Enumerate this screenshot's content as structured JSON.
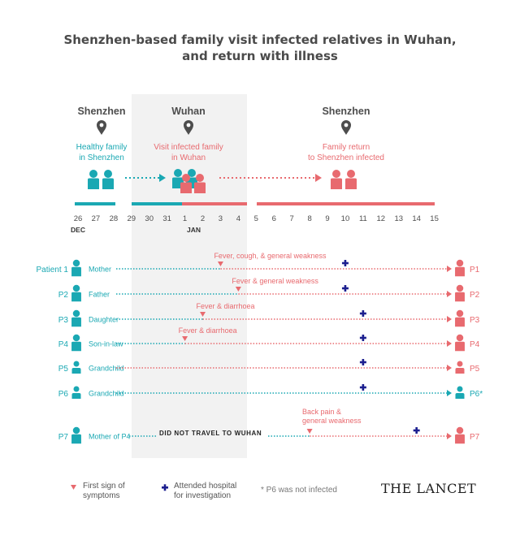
{
  "title_line1": "Shenzhen-based family visit infected relatives in Wuhan,",
  "title_line2": "and return with illness",
  "colors": {
    "teal": "#1aa8b3",
    "coral": "#e86a6f",
    "dark": "#4d4d4d",
    "navy": "#1c1f8f",
    "band": "#f2f2f2"
  },
  "locations": [
    {
      "name": "Shenzhen",
      "caption": [
        "Healthy family",
        "in Shenzhen"
      ],
      "color": "teal"
    },
    {
      "name": "Wuhan",
      "caption": [
        "Visit infected family",
        "in Wuhan"
      ],
      "color": "coral"
    },
    {
      "name": "Shenzhen",
      "caption": [
        "Family return",
        "to Shenzhen infected"
      ],
      "color": "coral"
    }
  ],
  "days": [
    "26",
    "27",
    "28",
    "29",
    "30",
    "31",
    "1",
    "2",
    "3",
    "4",
    "5",
    "6",
    "7",
    "8",
    "9",
    "10",
    "11",
    "12",
    "13",
    "14",
    "15"
  ],
  "months": [
    "DEC",
    "JAN"
  ],
  "patients": [
    {
      "id": "Patient 1",
      "role": "Mother",
      "symptom": "Fever, cough, & general weakness",
      "symptom_day": "3",
      "hospital_day": "10",
      "end_label": "P1",
      "infected": true
    },
    {
      "id": "P2",
      "role": "Father",
      "symptom": "Fever & general weakness",
      "symptom_day": "4",
      "hospital_day": "10",
      "end_label": "P2",
      "infected": true
    },
    {
      "id": "P3",
      "role": "Daughter",
      "symptom": "Fever & diarrhoea",
      "symptom_day": "2",
      "hospital_day": "11",
      "end_label": "P3",
      "infected": true
    },
    {
      "id": "P4",
      "role": "Son-in-law",
      "symptom": "Fever & diarrhoea",
      "symptom_day": "1",
      "hospital_day": "11",
      "end_label": "P4",
      "infected": true
    },
    {
      "id": "P5",
      "role": "Grandchild",
      "symptom": "",
      "symptom_day": "",
      "hospital_day": "11",
      "end_label": "P5",
      "infected": true
    },
    {
      "id": "P6",
      "role": "Grandchild",
      "symptom": "",
      "symptom_day": "",
      "hospital_day": "11",
      "end_label": "P6*",
      "infected": false
    },
    {
      "id": "P7",
      "role": "Mother of P4",
      "symptom": [
        "Back pain &",
        "general weakness"
      ],
      "symptom_day": "8",
      "hospital_day": "14",
      "end_label": "P7",
      "infected": true,
      "note": "DID NOT TRAVEL TO WUHAN"
    }
  ],
  "legend": {
    "symptom": [
      "First sign of",
      "symptoms"
    ],
    "hospital": [
      "Attended hospital",
      "for investigation"
    ],
    "note": "* P6 was not infected"
  },
  "logo": "THE LANCET"
}
